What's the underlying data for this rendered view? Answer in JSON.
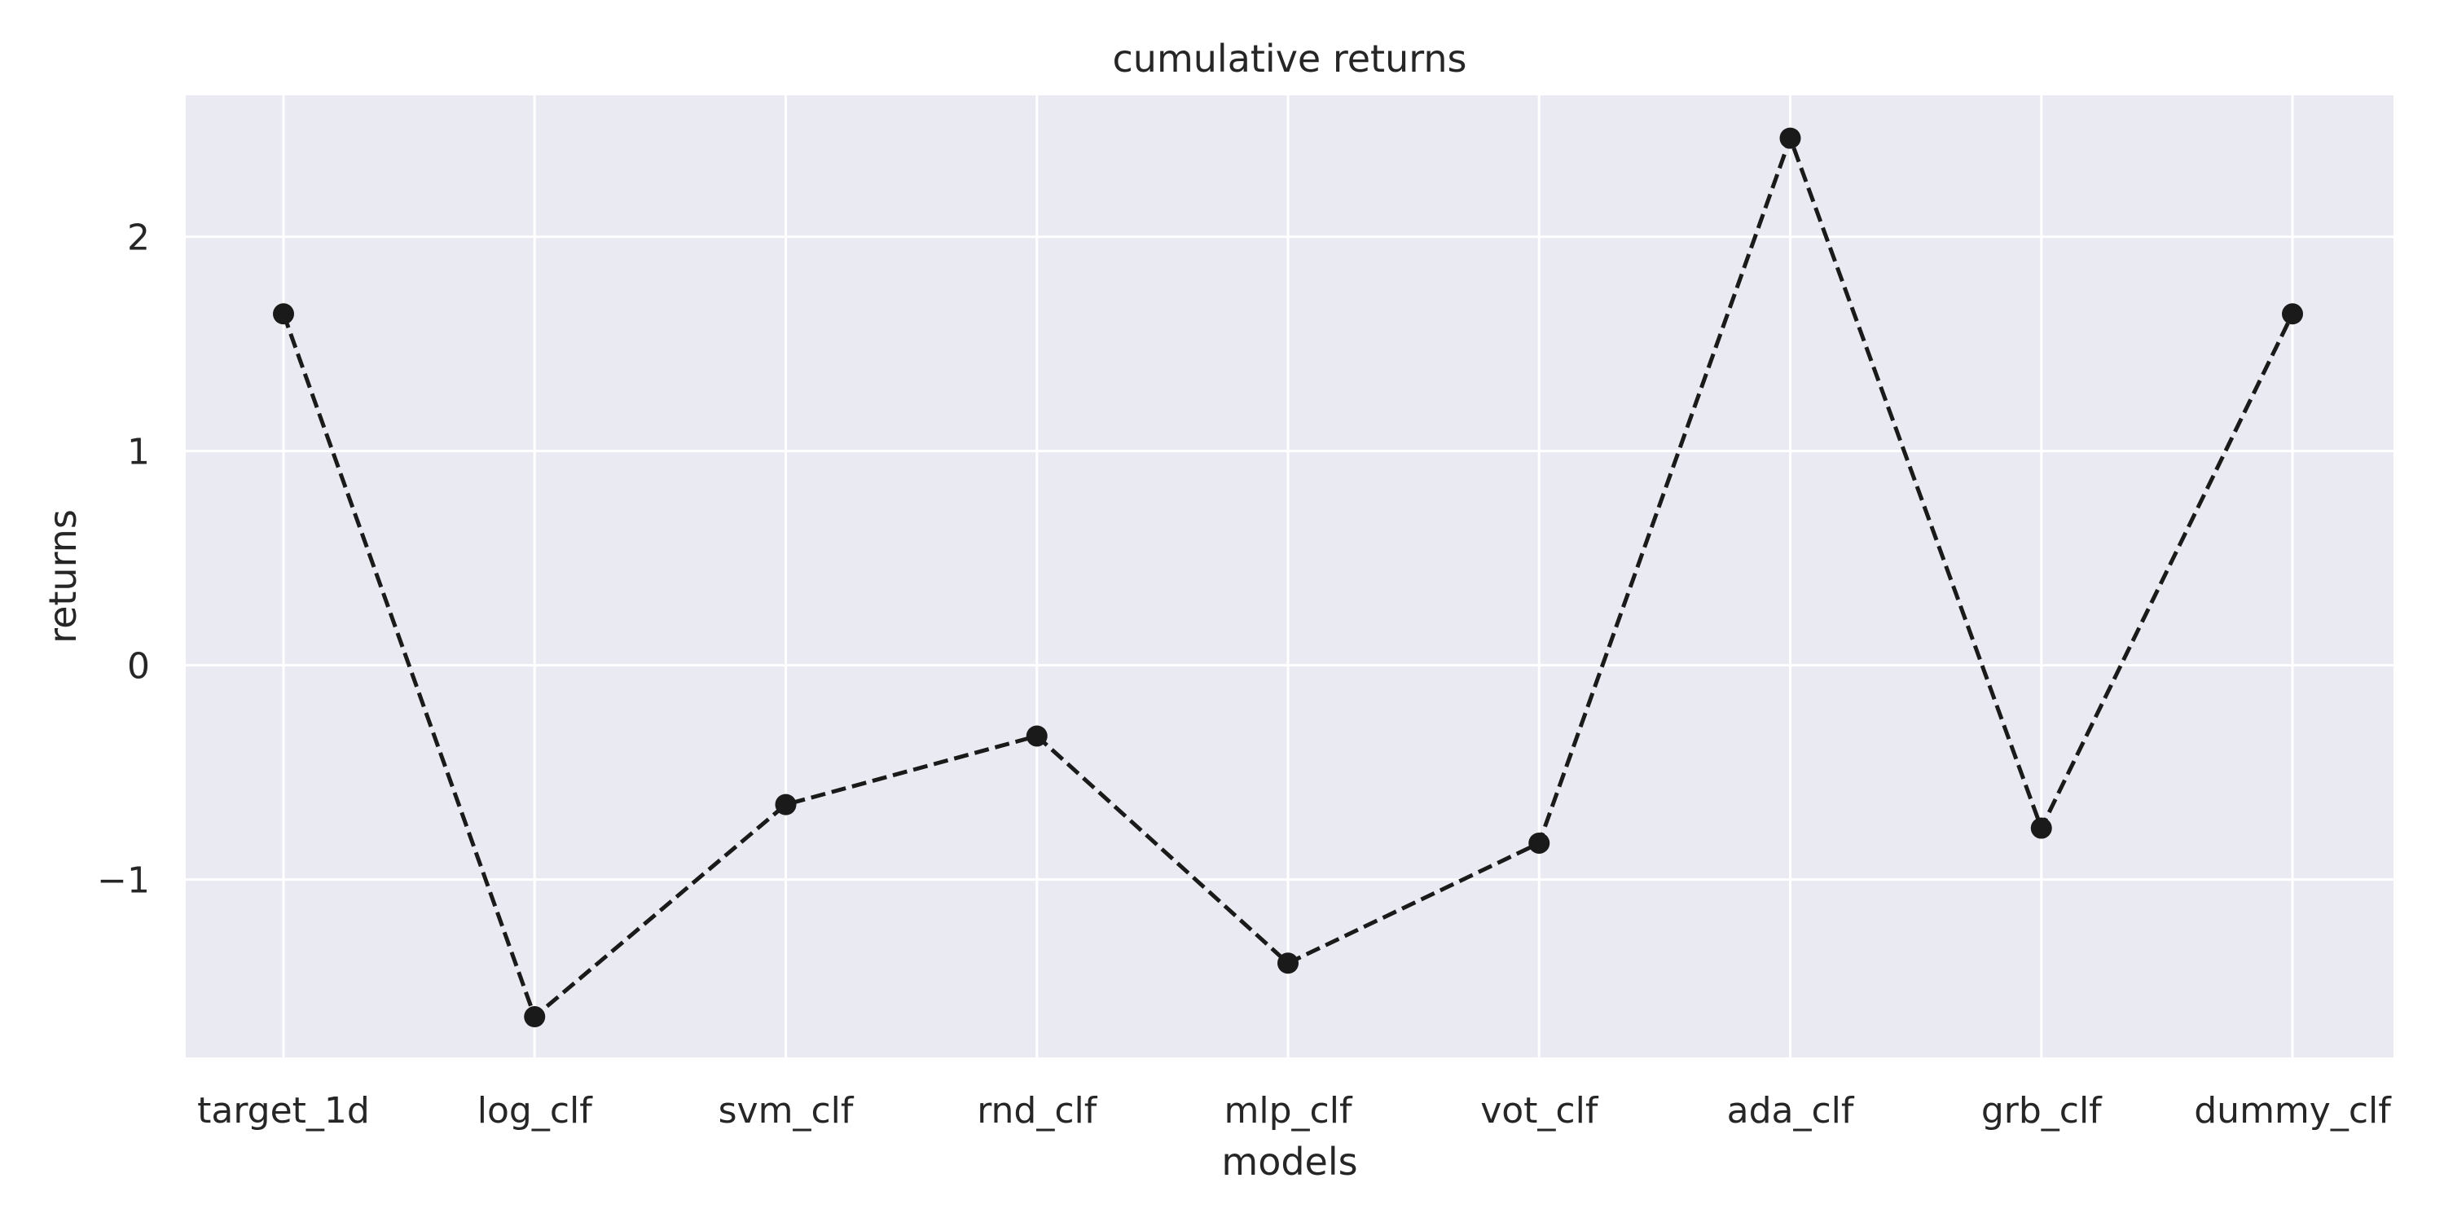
{
  "chart_data": {
    "type": "line",
    "title": "cumulative returns",
    "xlabel": "models",
    "ylabel": "returns",
    "categories": [
      "target_1d",
      "log_clf",
      "svm_clf",
      "rnd_clf",
      "mlp_clf",
      "vot_clf",
      "ada_clf",
      "grb_clf",
      "dummy_clf"
    ],
    "series": [
      {
        "values": [
          1.64,
          -1.64,
          -0.65,
          -0.33,
          -1.39,
          -0.83,
          2.46,
          -0.76,
          1.64
        ],
        "color": "#1a1a1a",
        "line_style": "dashed",
        "marker": "circle"
      }
    ],
    "yticks": [
      -1,
      0,
      1,
      2
    ],
    "ytick_labels": [
      "−1",
      "0",
      "1",
      "2"
    ],
    "ylim": [
      -1.83,
      2.66
    ],
    "grid": true,
    "background_color": "#eaeaf2",
    "grid_color": "#ffffff"
  }
}
